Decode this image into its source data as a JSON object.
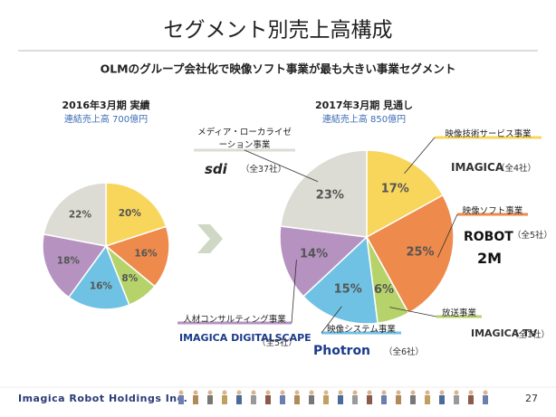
{
  "title": "セグメント別売上高構成",
  "subtitle": "OLMのグループ会社化で映像ソフト事業が最も大きい事業セグメント",
  "chart_data": [
    {
      "type": "pie",
      "title": "2016年3月期 実績",
      "subtitle": "連結売上高 700億円",
      "values": [
        20,
        16,
        8,
        16,
        18,
        22
      ],
      "value_labels": [
        "20%",
        "16%",
        "8%",
        "16%",
        "18%",
        "22%"
      ],
      "colors": [
        "#f8d65c",
        "#ee8a4b",
        "#b6d36b",
        "#6fc2e3",
        "#b592c0",
        "#dcdcd4"
      ]
    },
    {
      "type": "pie",
      "title": "2017年3月期 見通し",
      "subtitle": "連結売上高 850億円",
      "categories": [
        "映像技術サービス事業",
        "映像ソフト事業",
        "放送事業",
        "映像システム事業",
        "人材コンサルティング事業",
        "メディア・ローカライゼーション事業"
      ],
      "values": [
        17,
        25,
        6,
        15,
        14,
        23
      ],
      "value_labels": [
        "17%",
        "25%",
        "6%",
        "15%",
        "14%",
        "23%"
      ],
      "colors": [
        "#f8d65c",
        "#ee8a4b",
        "#b6d36b",
        "#6fc2e3",
        "#b592c0",
        "#dcdcd4"
      ]
    }
  ],
  "callouts": [
    {
      "companies": "（全4社）",
      "logos": [
        "IMAGICA"
      ]
    },
    {
      "companies": "（全5社）",
      "logos": [
        "ROBOT",
        "2M"
      ]
    },
    {
      "companies": "（全1社）",
      "logos": [
        "IMAGICA TV"
      ]
    },
    {
      "companies": "（全6社）",
      "logos": [
        "Photron"
      ]
    },
    {
      "companies": "（全5社）",
      "logos": [
        "IMAGICA DIGITALSCAPE"
      ]
    },
    {
      "companies": "（全37社）",
      "logos": [
        "sdi"
      ]
    }
  ],
  "footer": "Imagica Robot Holdings Inc.",
  "page_number": "27"
}
